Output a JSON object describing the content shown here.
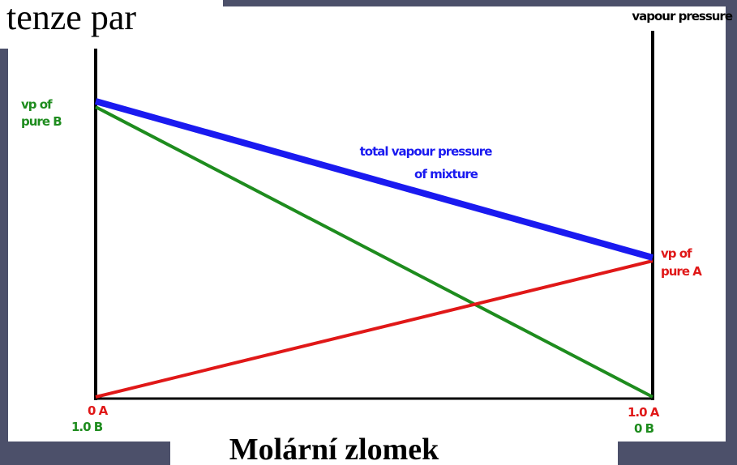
{
  "title": "tenze par",
  "y_axis_label": "vapour pressure",
  "x_axis_label": "Molární zlomek",
  "pure_b_label": [
    "vp of",
    "pure B"
  ],
  "total_label": [
    "total vapour pressure",
    "of mixture"
  ],
  "pure_a_label": [
    "vp of",
    "pure A"
  ],
  "left_end": [
    "0 A",
    "1.0 B"
  ],
  "right_end": [
    "1.0 A",
    "0 B"
  ]
}
